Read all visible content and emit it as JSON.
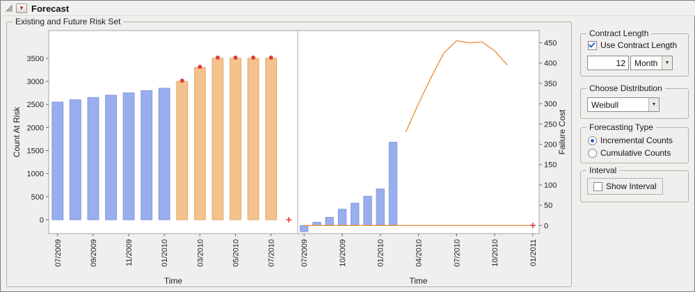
{
  "window": {
    "title": "Forecast"
  },
  "risk_set": {
    "title": "Existing and Future Risk Set"
  },
  "glyphs": {
    "combo_arrow": "▼",
    "red_triangle": "▼"
  },
  "controls": {
    "contract_length": {
      "title": "Contract Length",
      "checkbox_label": "Use Contract Length",
      "checkbox_checked": true,
      "length_value": "12",
      "unit_selected": "Month"
    },
    "distribution": {
      "title": "Choose Distribution",
      "selected": "Weibull"
    },
    "forecasting_type": {
      "title": "Forecasting Type",
      "options": [
        {
          "label": "Incremental Counts",
          "selected": true
        },
        {
          "label": "Cumulative Counts",
          "selected": false
        }
      ]
    },
    "interval": {
      "title": "Interval",
      "checkbox_label": "Show Interval",
      "checkbox_checked": false
    }
  },
  "chart_data": [
    {
      "type": "bar",
      "ylabel": "Count At Risk",
      "xlabel": "Time",
      "ylim": [
        -300,
        4100
      ],
      "yticks": [
        0,
        500,
        1000,
        1500,
        2000,
        2500,
        3000,
        3500
      ],
      "categories": [
        "07/2009",
        "08/2009",
        "09/2009",
        "10/2009",
        "11/2009",
        "12/2009",
        "01/2010",
        "02/2010",
        "03/2010",
        "04/2010",
        "05/2010",
        "06/2010",
        "07/2010",
        "08/2010"
      ],
      "xtick_indices": [
        0,
        2,
        4,
        6,
        8,
        10,
        12
      ],
      "series": [
        {
          "name": "observed-count-at-risk",
          "kind": "bar",
          "color": "#98aeee",
          "edge": "#8399da",
          "start_index": 0,
          "values": [
            2550,
            2600,
            2650,
            2700,
            2750,
            2800,
            2850
          ]
        },
        {
          "name": "forecast-count-at-risk",
          "kind": "bar",
          "color": "#f4c28c",
          "edge": "#e2ab72",
          "start_index": 7,
          "values": [
            3000,
            3300,
            3500,
            3500,
            3500,
            3500
          ],
          "point_color": "#e03c3c"
        }
      ],
      "markers": [
        {
          "shape": "plus",
          "color": "#e03c3c",
          "index": 13,
          "value": 0
        }
      ]
    },
    {
      "type": "bar+line",
      "ylabel": "Failure Cost",
      "xlabel": "Time",
      "ylim": [
        -20,
        480
      ],
      "yticks": [
        0,
        50,
        100,
        150,
        200,
        250,
        300,
        350,
        400,
        450
      ],
      "categories": [
        "07/2009",
        "08/2009",
        "09/2009",
        "10/2009",
        "11/2009",
        "12/2009",
        "01/2010",
        "02/2010",
        "03/2010",
        "04/2010",
        "05/2010",
        "06/2010",
        "07/2010",
        "08/2010",
        "09/2010",
        "10/2010",
        "11/2010",
        "12/2010",
        "01/2011"
      ],
      "xtick_indices": [
        0,
        3,
        6,
        9,
        12,
        15,
        18
      ],
      "series": [
        {
          "name": "observed-failure-counts",
          "kind": "bar",
          "color": "#98aeee",
          "edge": "#8399da",
          "start_index": 0,
          "values": [
            -15,
            8,
            20,
            40,
            55,
            72,
            90,
            205
          ]
        },
        {
          "name": "forecast-failure-cost-curve",
          "kind": "line",
          "color": "#ea9140",
          "start_index": 8,
          "values": [
            230,
            300,
            365,
            425,
            455,
            450,
            452,
            430,
            395
          ]
        },
        {
          "name": "baseline-cost",
          "kind": "line",
          "color": "#ea9140",
          "start_index": 0,
          "values": [
            0,
            0,
            0,
            0,
            0,
            0,
            0,
            0,
            0,
            0,
            0,
            0,
            0,
            0,
            0,
            0,
            0,
            0,
            0
          ]
        }
      ],
      "markers": [
        {
          "shape": "plus",
          "color": "#e03c3c",
          "index": 18,
          "value": 0
        }
      ]
    }
  ]
}
